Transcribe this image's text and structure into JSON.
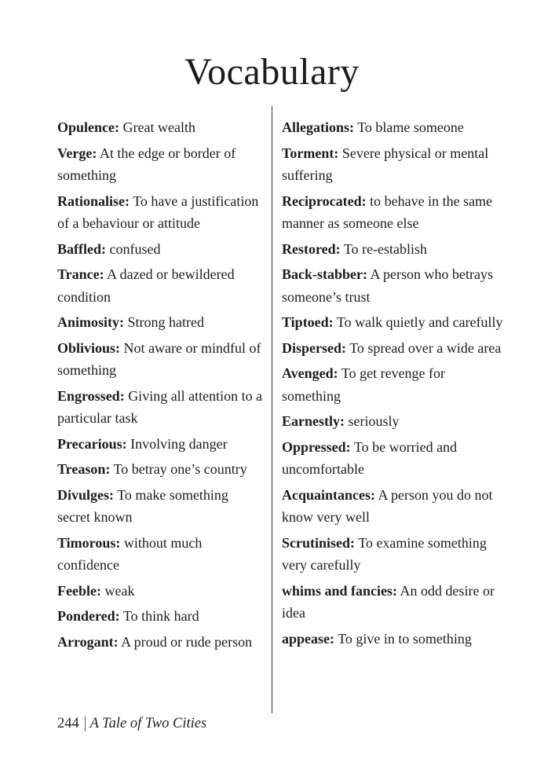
{
  "page": {
    "title": "Vocabulary",
    "footer": {
      "page_number": "244",
      "separator": "|",
      "book_title": "A Tale of Two Cities"
    },
    "columns": [
      {
        "entries": [
          {
            "term": "Opulence:",
            "definition": "Great wealth"
          },
          {
            "term": "Verge:",
            "definition": "At the edge or border of something"
          },
          {
            "term": "Rationalise:",
            "definition": "To have a justification of a behaviour or attitude"
          },
          {
            "term": "Baffled:",
            "definition": "confused"
          },
          {
            "term": "Trance:",
            "definition": "A dazed or bewildered condition"
          },
          {
            "term": "Animosity:",
            "definition": "Strong hatred"
          },
          {
            "term": "Oblivious:",
            "definition": "Not aware or mindful of something"
          },
          {
            "term": "Engrossed:",
            "definition": "Giving all attention to a particular task"
          },
          {
            "term": "Precarious:",
            "definition": "Involving danger"
          },
          {
            "term": "Treason:",
            "definition": "To betray one’s country"
          },
          {
            "term": "Divulges:",
            "definition": "To make something secret known"
          },
          {
            "term": "Timorous:",
            "definition": "without much confidence"
          },
          {
            "term": "Feeble:",
            "definition": "weak"
          },
          {
            "term": "Pondered:",
            "definition": "To think hard"
          },
          {
            "term": "Arrogant:",
            "definition": "A proud or rude person"
          }
        ]
      },
      {
        "entries": [
          {
            "term": "Allegations:",
            "definition": "To blame someone"
          },
          {
            "term": "Torment:",
            "definition": "Severe physical or mental suffering"
          },
          {
            "term": "Reciprocated:",
            "definition": "to behave in the same manner as someone else"
          },
          {
            "term": "Restored:",
            "definition": "To re-establish"
          },
          {
            "term": "Back-stabber:",
            "definition": "A person who betrays someone’s trust"
          },
          {
            "term": "Tiptoed:",
            "definition": "To walk quietly and carefully"
          },
          {
            "term": "Dispersed:",
            "definition": "To spread over a wide area"
          },
          {
            "term": "Avenged:",
            "definition": "To get revenge for something"
          },
          {
            "term": "Earnestly:",
            "definition": "seriously"
          },
          {
            "term": "Oppressed:",
            "definition": "To be worried and uncomfortable"
          },
          {
            "term": "Acquaintances:",
            "definition": "A person you do not know very well"
          },
          {
            "term": "Scrutinised:",
            "definition": "To examine something very carefully"
          },
          {
            "term": "whims and fancies:",
            "definition": "An odd desire or idea"
          },
          {
            "term": "appease:",
            "definition": "To give in to something"
          }
        ]
      }
    ]
  },
  "colors": {
    "text": "#1c1c1c",
    "divider": "#2e2e2e",
    "background": "#ffffff"
  }
}
